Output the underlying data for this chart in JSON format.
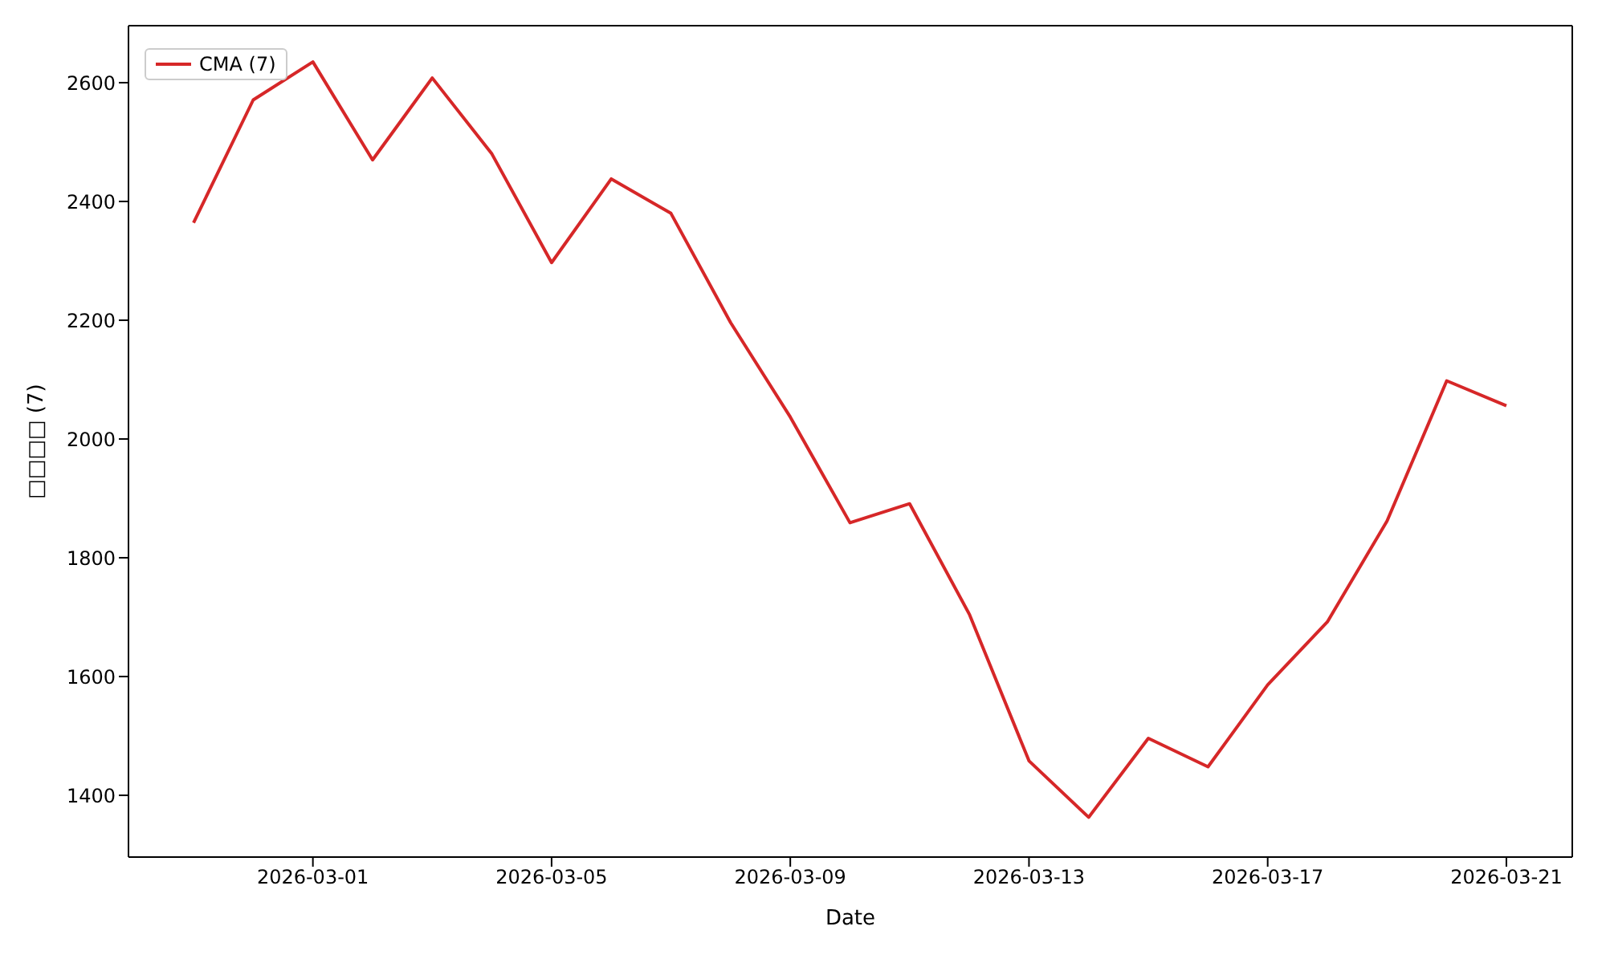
{
  "chart_data": {
    "type": "line",
    "xlabel": "Date",
    "ylabel": "□□□□ (7)",
    "x": [
      "2026-02-27",
      "2026-02-28",
      "2026-03-01",
      "2026-03-02",
      "2026-03-03",
      "2026-03-04",
      "2026-03-05",
      "2026-03-06",
      "2026-03-07",
      "2026-03-08",
      "2026-03-09",
      "2026-03-10",
      "2026-03-11",
      "2026-03-12",
      "2026-03-13",
      "2026-03-14",
      "2026-03-15",
      "2026-03-16",
      "2026-03-17",
      "2026-03-18",
      "2026-03-19",
      "2026-03-20",
      "2026-03-21"
    ],
    "series": [
      {
        "name": "CMA (7)",
        "color": "#d62728",
        "values": [
          2364,
          2571,
          2635,
          2470,
          2608,
          2480,
          2297,
          2438,
          2380,
          2196,
          2037,
          1859,
          1891,
          1705,
          1458,
          1363,
          1496,
          1448,
          1586,
          1692,
          1862,
          2098,
          2056
        ]
      }
    ],
    "xlim": [
      "2026-02-25T21:50",
      "2026-03-22T02:30"
    ],
    "xticks": [
      "2026-03-01",
      "2026-03-05",
      "2026-03-09",
      "2026-03-13",
      "2026-03-17",
      "2026-03-21"
    ],
    "ylim": [
      1296,
      2696
    ],
    "yticks": [
      1400,
      1600,
      1800,
      2000,
      2200,
      2400,
      2600
    ],
    "grid": false,
    "legend": "top left",
    "marker": "none",
    "line_style": "solid"
  }
}
